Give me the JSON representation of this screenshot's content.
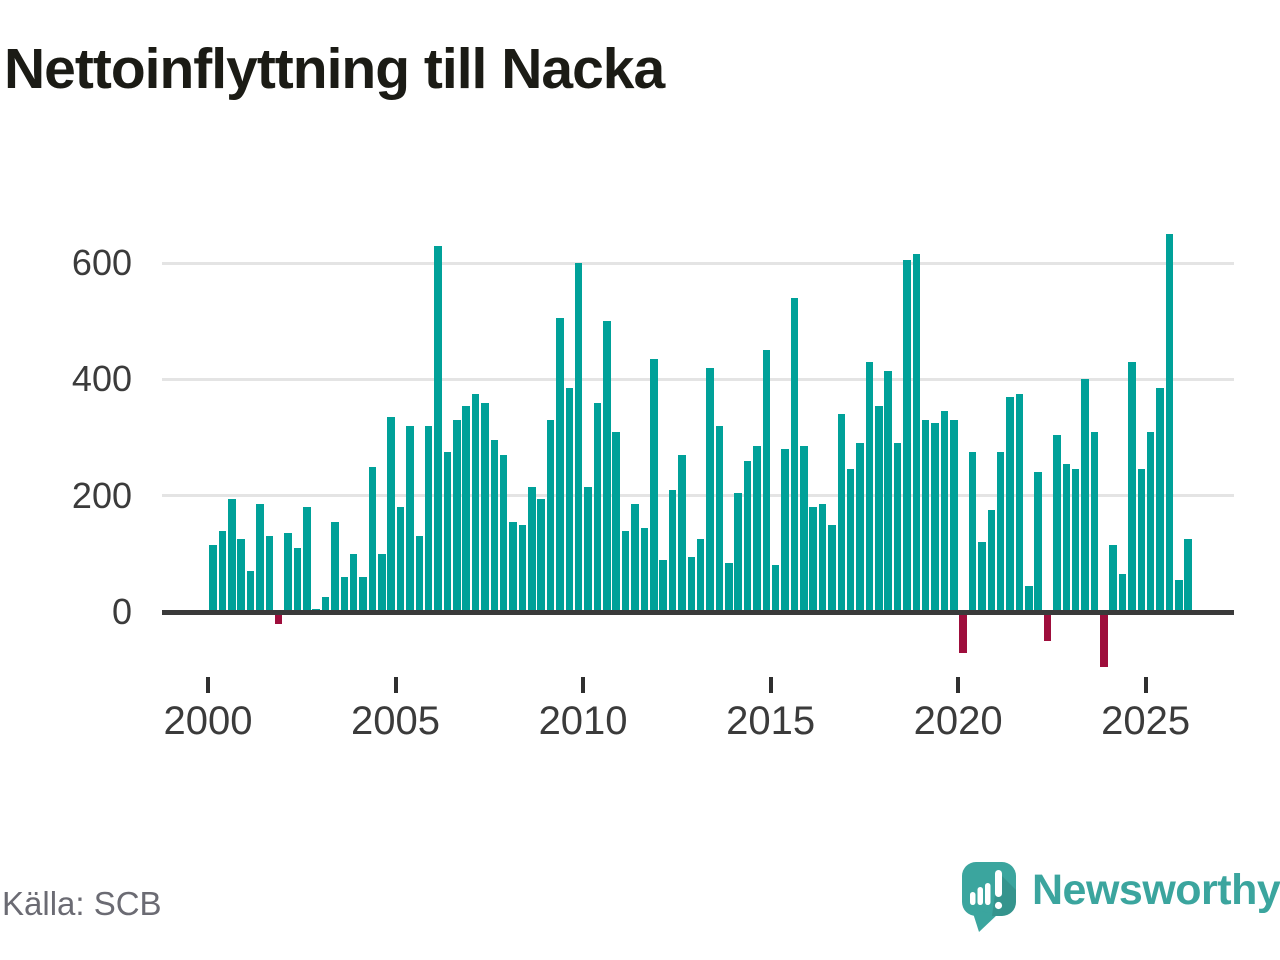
{
  "title": "Nettoinflyttning till Nacka",
  "source": "Källa: SCB",
  "branding": {
    "name": "Newsworthy",
    "logo_icon": "speech-bubble-bar-chart-exclamation",
    "brand_color": "#3ba59e"
  },
  "colors": {
    "bar_positive": "#00a199",
    "bar_negative": "#9e0e3c",
    "axis": "#3a3a3a",
    "gridline": "#e4e4e4",
    "tick_label": "#3b3b3b",
    "source_text": "#6b6b73",
    "title_text": "#1b1b15",
    "background": "#ffffff"
  },
  "chart_data": {
    "type": "bar",
    "title": "Nettoinflyttning till Nacka",
    "xlabel": "",
    "ylabel": "",
    "frequency": "quarterly",
    "start_period": "2000Q1",
    "grid": "horizontal",
    "legend": "none",
    "y_ticks": [
      0,
      200,
      400,
      600
    ],
    "ylim": [
      -120,
      680
    ],
    "x_tick_years": [
      "2000",
      "2005",
      "2010",
      "2015",
      "2020",
      "2025"
    ],
    "quarters": [
      "2000Q1",
      "2000Q2",
      "2000Q3",
      "2000Q4",
      "2001Q1",
      "2001Q2",
      "2001Q3",
      "2001Q4",
      "2002Q1",
      "2002Q2",
      "2002Q3",
      "2002Q4",
      "2003Q1",
      "2003Q2",
      "2003Q3",
      "2003Q4",
      "2004Q1",
      "2004Q2",
      "2004Q3",
      "2004Q4",
      "2005Q1",
      "2005Q2",
      "2005Q3",
      "2005Q4",
      "2006Q1",
      "2006Q2",
      "2006Q3",
      "2006Q4",
      "2007Q1",
      "2007Q2",
      "2007Q3",
      "2007Q4",
      "2008Q1",
      "2008Q2",
      "2008Q3",
      "2008Q4",
      "2009Q1",
      "2009Q2",
      "2009Q3",
      "2009Q4",
      "2010Q1",
      "2010Q2",
      "2010Q3",
      "2010Q4",
      "2011Q1",
      "2011Q2",
      "2011Q3",
      "2011Q4",
      "2012Q1",
      "2012Q2",
      "2012Q3",
      "2012Q4",
      "2013Q1",
      "2013Q2",
      "2013Q3",
      "2013Q4",
      "2014Q1",
      "2014Q2",
      "2014Q3",
      "2014Q4",
      "2015Q1",
      "2015Q2",
      "2015Q3",
      "2015Q4",
      "2016Q1",
      "2016Q2",
      "2016Q3",
      "2016Q4",
      "2017Q1",
      "2017Q2",
      "2017Q3",
      "2017Q4",
      "2018Q1",
      "2018Q2",
      "2018Q3",
      "2018Q4",
      "2019Q1",
      "2019Q2",
      "2019Q3",
      "2019Q4",
      "2020Q1",
      "2020Q2",
      "2020Q3",
      "2020Q4",
      "2021Q1",
      "2021Q2",
      "2021Q3",
      "2021Q4",
      "2022Q1",
      "2022Q2",
      "2022Q3",
      "2022Q4",
      "2023Q1",
      "2023Q2",
      "2023Q3",
      "2023Q4",
      "2024Q1",
      "2024Q2",
      "2024Q3",
      "2024Q4",
      "2025Q1",
      "2025Q2",
      "2025Q3",
      "2025Q4",
      "2026Q1"
    ],
    "values": [
      115,
      140,
      195,
      125,
      70,
      185,
      130,
      -20,
      135,
      110,
      180,
      5,
      25,
      155,
      60,
      100,
      60,
      250,
      100,
      335,
      180,
      320,
      130,
      320,
      630,
      275,
      330,
      355,
      375,
      360,
      295,
      270,
      155,
      150,
      215,
      195,
      330,
      505,
      385,
      600,
      215,
      360,
      500,
      310,
      140,
      185,
      145,
      435,
      90,
      210,
      270,
      95,
      125,
      420,
      320,
      85,
      205,
      260,
      285,
      450,
      80,
      280,
      540,
      285,
      180,
      185,
      150,
      340,
      245,
      290,
      430,
      355,
      415,
      290,
      605,
      615,
      330,
      325,
      345,
      330,
      -70,
      275,
      120,
      175,
      275,
      370,
      375,
      45,
      240,
      -50,
      305,
      255,
      245,
      400,
      310,
      -95,
      115,
      65,
      430,
      245,
      310,
      385,
      650,
      55,
      125
    ]
  }
}
